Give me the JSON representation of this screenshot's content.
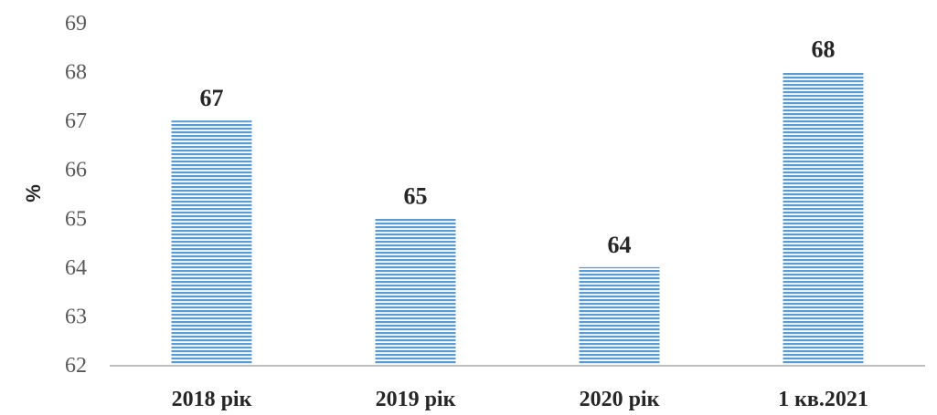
{
  "chart_data": {
    "type": "bar",
    "categories": [
      "2018 рік",
      "2019 рік",
      "2020 рік",
      "1 кв.2021"
    ],
    "values": [
      67,
      65,
      64,
      68
    ],
    "data_labels": [
      "67",
      "65",
      "64",
      "68"
    ],
    "title": "",
    "xlabel": "",
    "ylabel": "%",
    "ylim": [
      62,
      69
    ],
    "yticks": [
      "62",
      "63",
      "64",
      "65",
      "66",
      "67",
      "68",
      "69"
    ],
    "grid": false,
    "bar_color": "#5b9bd5",
    "bar_stripe_color": "#ffffff",
    "axis_color": "#bfbfbf"
  }
}
